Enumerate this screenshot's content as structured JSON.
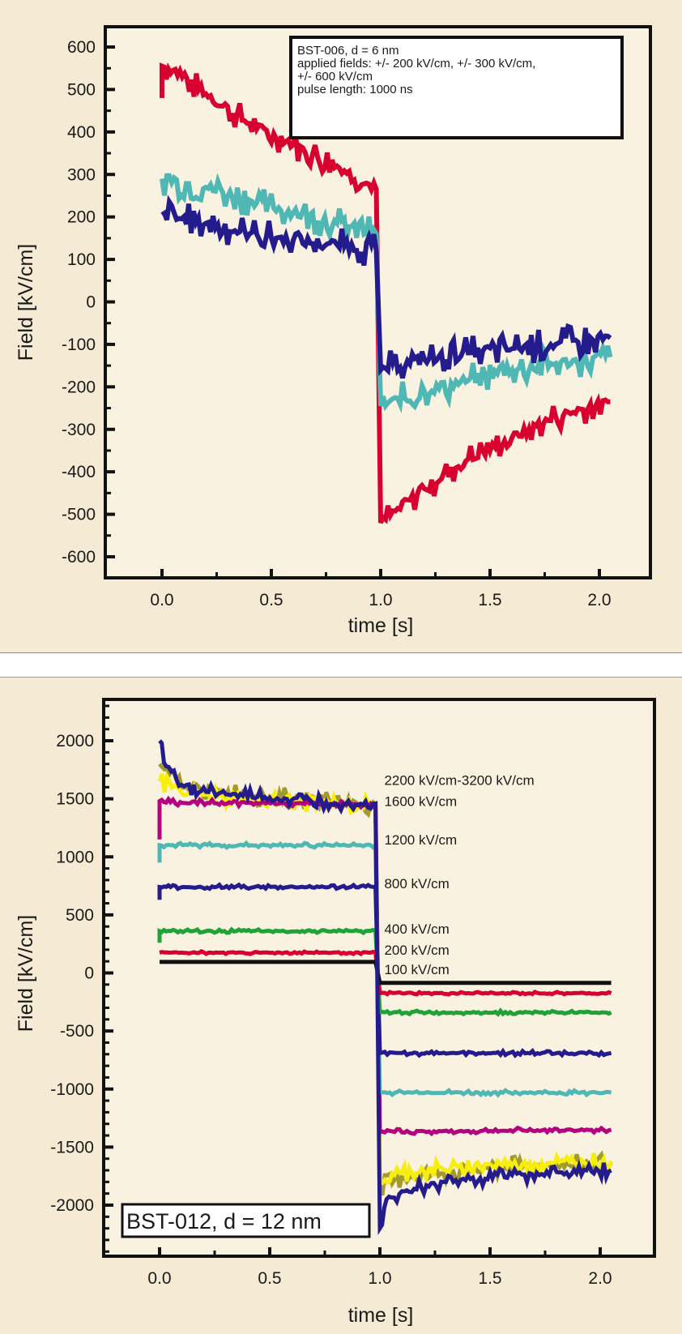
{
  "chart_data": [
    {
      "type": "line",
      "title": "",
      "xlabel": "time [s]",
      "ylabel": "Field  [kV/cm]",
      "xlim": [
        -0.25,
        2.25
      ],
      "ylim": [
        -650,
        650
      ],
      "xticks": [
        "0.0",
        "0.5",
        "1.0",
        "1.5",
        "2.0"
      ],
      "xtick_values": [
        0.0,
        0.5,
        1.0,
        1.5,
        2.0
      ],
      "yticks": [
        "600",
        "500",
        "400",
        "300",
        "200",
        "100",
        "0",
        "-100",
        "-200",
        "-300",
        "-400",
        "-500",
        "-600"
      ],
      "ytick_values": [
        600,
        500,
        400,
        300,
        200,
        100,
        0,
        -100,
        -200,
        -300,
        -400,
        -500,
        -600
      ],
      "grid": false,
      "annotation": [
        "BST-006, d = 6 nm",
        "applied fields: +/- 200 kV/cm, +/- 300 kV/cm,",
        "+/- 600 kV/cm",
        "pulse length: 1000 ns"
      ],
      "series": [
        {
          "name": "+/- 600 kV/cm",
          "color": "#d8002f",
          "noise": 35,
          "x": [
            0.0,
            0.0,
            0.05,
            0.2,
            0.4,
            0.6,
            0.8,
            0.98,
            0.98,
            1.0,
            1.2,
            1.4,
            1.6,
            1.8,
            2.05
          ],
          "y": [
            480,
            555,
            545,
            490,
            420,
            370,
            320,
            265,
            265,
            -520,
            -440,
            -370,
            -320,
            -270,
            -235
          ]
        },
        {
          "name": "+/- 300 kV/cm",
          "color": "#4fb7b4",
          "noise": 40,
          "x": [
            0.0,
            0.2,
            0.4,
            0.6,
            0.8,
            0.98,
            1.0,
            1.2,
            1.4,
            1.6,
            1.8,
            2.05
          ],
          "y": [
            290,
            270,
            240,
            210,
            185,
            160,
            -245,
            -210,
            -185,
            -160,
            -145,
            -130
          ]
        },
        {
          "name": "+/- 200 kV/cm",
          "color": "#241b8c",
          "noise": 40,
          "x": [
            0.0,
            0.2,
            0.4,
            0.6,
            0.8,
            0.98,
            1.0,
            1.2,
            1.4,
            1.6,
            1.8,
            2.05
          ],
          "y": [
            205,
            185,
            160,
            145,
            135,
            120,
            -160,
            -135,
            -120,
            -110,
            -100,
            -85
          ]
        }
      ]
    },
    {
      "type": "line",
      "title": "",
      "xlabel": "time [s]",
      "ylabel": "Field  [kV/cm]",
      "xlim": [
        -0.25,
        2.25
      ],
      "ylim": [
        -2400,
        2400
      ],
      "xticks": [
        "0.0",
        "0.5",
        "1.0",
        "1.5",
        "2.0"
      ],
      "xtick_values": [
        0.0,
        0.5,
        1.0,
        1.5,
        2.0
      ],
      "yticks": [
        "2000",
        "1500",
        "1000",
        "500",
        "0",
        "-500",
        "-1000",
        "-1500",
        "-2000"
      ],
      "ytick_values": [
        2000,
        1500,
        1000,
        500,
        0,
        -500,
        -1000,
        -1500,
        -2000
      ],
      "grid": false,
      "sample_label": "BST-012, d = 12 nm",
      "series": [
        {
          "name": "2200 kV/cm-3200 kV/cm",
          "color": "#a39a2c",
          "noise": 90,
          "x": [
            0.0,
            0.1,
            0.5,
            0.98,
            1.0,
            1.1,
            1.5,
            2.05
          ],
          "y": [
            1800,
            1600,
            1520,
            1450,
            -1850,
            -1760,
            -1680,
            -1640
          ]
        },
        {
          "name": "2200 kV/cm-3200 kV/cm",
          "color": "#f7ee0e",
          "noise": 80,
          "x": [
            0.0,
            0.1,
            0.5,
            0.98,
            1.0,
            1.1,
            1.5,
            2.05
          ],
          "y": [
            1650,
            1550,
            1480,
            1440,
            -1800,
            -1720,
            -1650,
            -1620
          ]
        },
        {
          "name": "1600 kV/cm",
          "color": "#b5007f",
          "noise": 25,
          "x": [
            0.0,
            0.0,
            0.05,
            0.98,
            1.0,
            2.05
          ],
          "y": [
            1150,
            1480,
            1470,
            1450,
            -1370,
            -1350
          ]
        },
        {
          "name": "1200 kV/cm",
          "color": "#4fb7b4",
          "noise": 20,
          "x": [
            0.0,
            0.0,
            0.05,
            0.98,
            1.0,
            2.05
          ],
          "y": [
            950,
            1100,
            1100,
            1100,
            -1030,
            -1030
          ]
        },
        {
          "name": "800 kV/cm",
          "color": "#241b8c",
          "noise": 20,
          "x": [
            0.0,
            0.0,
            0.05,
            0.98,
            1.0,
            2.05
          ],
          "y": [
            630,
            740,
            740,
            740,
            -690,
            -690
          ]
        },
        {
          "name": "400 kV/cm",
          "color": "#1fa337",
          "noise": 15,
          "x": [
            0.0,
            0.0,
            0.05,
            0.98,
            1.0,
            2.05
          ],
          "y": [
            260,
            360,
            360,
            360,
            -340,
            -340
          ]
        },
        {
          "name": "200 kV/cm",
          "color": "#d8002f",
          "noise": 12,
          "x": [
            0.0,
            0.98,
            1.0,
            2.05
          ],
          "y": [
            175,
            175,
            -175,
            -175
          ]
        },
        {
          "name": "100 kV/cm",
          "color": "#111111",
          "noise": 0,
          "x": [
            0.0,
            0.98,
            1.0,
            2.05
          ],
          "y": [
            95,
            95,
            -85,
            -85
          ]
        },
        {
          "name": "2200 kV/cm-3200 kV/cm",
          "color": "#241b8c",
          "noise": 70,
          "x": [
            0.0,
            0.03,
            0.1,
            0.3,
            0.6,
            0.98,
            0.98,
            1.0,
            1.03,
            1.1,
            1.3,
            1.6,
            2.05
          ],
          "y": [
            2000,
            1780,
            1620,
            1540,
            1490,
            1460,
            1460,
            -2200,
            -1950,
            -1880,
            -1800,
            -1740,
            -1700
          ]
        }
      ],
      "series_labels": [
        "2200 kV/cm-3200 kV/cm",
        "1600 kV/cm",
        "1200 kV/cm",
        "800 kV/cm",
        "400 kV/cm",
        "200 kV/cm",
        "100 kV/cm"
      ],
      "series_label_values": [
        1660,
        1480,
        1150,
        770,
        380,
        200,
        30
      ]
    }
  ]
}
